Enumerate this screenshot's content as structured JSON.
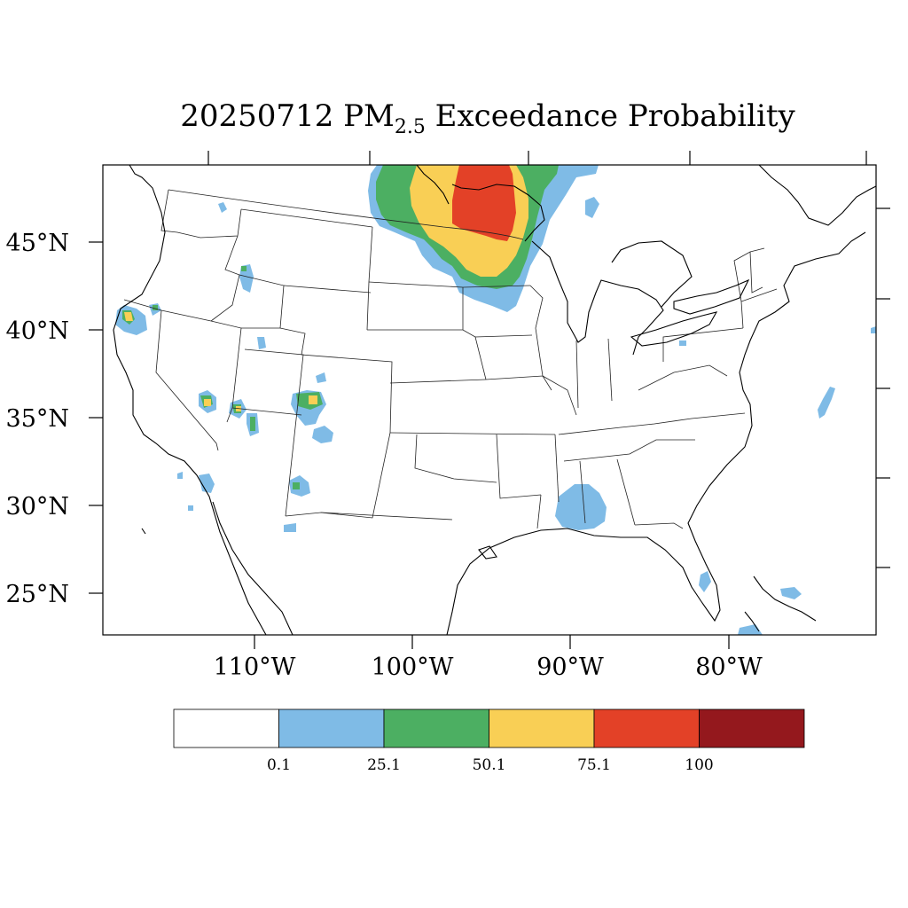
{
  "title": {
    "date": "20250712",
    "pm": "PM",
    "sub": "2.5",
    "rest": " Exceedance Probability"
  },
  "lat_labels": [
    "45°N",
    "40°N",
    "35°N",
    "30°N",
    "25°N"
  ],
  "lon_labels": [
    "110°W",
    "100°W",
    "90°W",
    "80°W"
  ],
  "colorbar": {
    "colors": [
      "#ffffff",
      "#7fbbe6",
      "#4caf62",
      "#f9cf55",
      "#e34127",
      "#94181d"
    ],
    "labels": [
      "0.1",
      "25.1",
      "50.1",
      "75.1",
      "100"
    ]
  },
  "colors": {
    "blue": "#7fbbe6",
    "green": "#4caf62",
    "yellow": "#f9cf55",
    "red": "#e34127",
    "dark_red": "#94181d"
  }
}
